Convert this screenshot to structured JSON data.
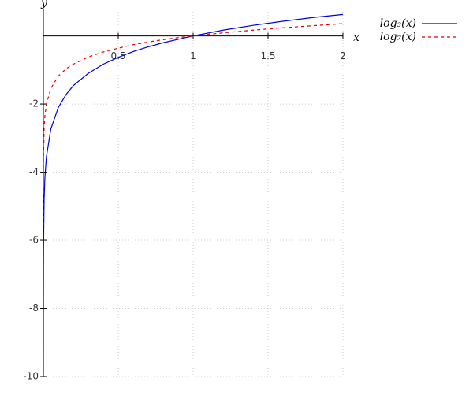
{
  "chart_data": {
    "type": "line",
    "x_label": "x",
    "y_label": "y",
    "x": [
      2e-05,
      0.0001,
      0.001,
      0.005,
      0.01,
      0.02,
      0.05,
      0.1,
      0.15,
      0.2,
      0.3,
      0.4,
      0.5,
      0.6,
      0.7,
      0.8,
      0.9,
      1,
      1.2,
      1.4,
      1.6,
      1.8,
      2
    ],
    "series": [
      {
        "name": "log₃(x)",
        "color": "#0000dd",
        "dash": false,
        "values": [
          -9.85,
          -8.38,
          -6.29,
          -4.82,
          -4.19,
          -3.56,
          -2.73,
          -2.1,
          -1.73,
          -1.46,
          -1.1,
          -0.83,
          -0.63,
          -0.46,
          -0.32,
          -0.2,
          -0.1,
          0,
          0.17,
          0.31,
          0.43,
          0.54,
          0.63
        ]
      },
      {
        "name": "log₇(x)",
        "color": "#dd0000",
        "dash": true,
        "values": [
          -5.56,
          -4.73,
          -3.55,
          -2.72,
          -2.37,
          -2.01,
          -1.54,
          -1.18,
          -0.97,
          -0.83,
          -0.62,
          -0.47,
          -0.36,
          -0.26,
          -0.18,
          -0.11,
          -0.05,
          0,
          0.09,
          0.17,
          0.24,
          0.3,
          0.36
        ]
      }
    ],
    "xlim": [
      0,
      2
    ],
    "ylim": [
      -10,
      0.8
    ],
    "xticks": [
      0.5,
      1,
      1.5,
      2
    ],
    "yticks": [
      -2,
      -4,
      -6,
      -8,
      -10
    ],
    "grid": true
  }
}
